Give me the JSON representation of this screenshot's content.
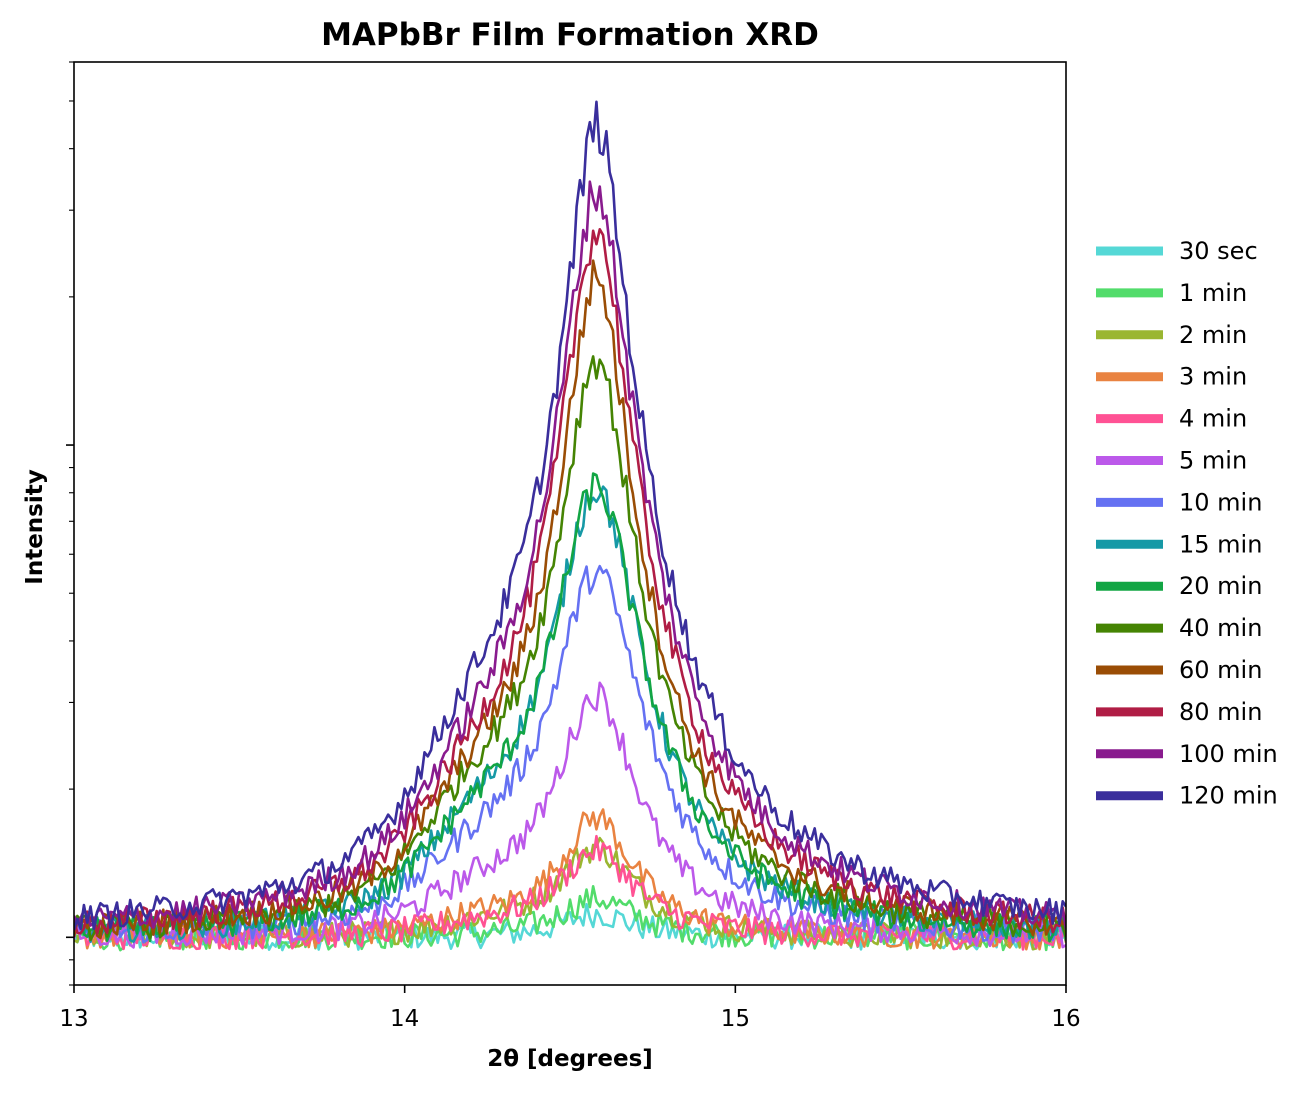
{
  "chart_data": {
    "type": "line",
    "title": "MAPbBr Film Formation XRD",
    "xlabel": "2θ [degrees]",
    "ylabel": "Intensity",
    "xlim": [
      13,
      16
    ],
    "xticks": [
      13,
      14,
      15,
      16
    ],
    "xtick_labels": [
      "13",
      "14",
      "15",
      "16"
    ],
    "y_scale": "log",
    "y_tick_labels_shown": false,
    "grid": false,
    "legend_position": "right, outside plot area",
    "peak_center": 14.58,
    "series": [
      {
        "name": "30 sec",
        "color": "#55d8d6",
        "baseline": 1.0,
        "peak": 1.12,
        "width": 0.12,
        "shoulder": 0.0
      },
      {
        "name": "1 min",
        "color": "#52dc6b",
        "baseline": 1.0,
        "peak": 1.2,
        "width": 0.13,
        "shoulder": 0.0
      },
      {
        "name": "2 min",
        "color": "#9ab631",
        "baseline": 1.0,
        "peak": 1.52,
        "width": 0.13,
        "shoulder": 0.05
      },
      {
        "name": "3 min",
        "color": "#e98341",
        "baseline": 1.0,
        "peak": 1.75,
        "width": 0.12,
        "shoulder": 0.06
      },
      {
        "name": "4 min",
        "color": "#ff5294",
        "baseline": 1.0,
        "peak": 1.5,
        "width": 0.13,
        "shoulder": 0.05
      },
      {
        "name": "5 min",
        "color": "#bc59ea",
        "baseline": 1.0,
        "peak": 3.1,
        "width": 0.12,
        "shoulder": 0.12
      },
      {
        "name": "10 min",
        "color": "#6571f2",
        "baseline": 1.0,
        "peak": 5.5,
        "width": 0.12,
        "shoulder": 0.16
      },
      {
        "name": "15 min",
        "color": "#1699a6",
        "baseline": 1.0,
        "peak": 8.2,
        "width": 0.11,
        "shoulder": 0.18
      },
      {
        "name": "20 min",
        "color": "#12a544",
        "baseline": 1.0,
        "peak": 8.2,
        "width": 0.11,
        "shoulder": 0.18
      },
      {
        "name": "40 min",
        "color": "#458403",
        "baseline": 1.0,
        "peak": 15.0,
        "width": 0.09,
        "shoulder": 0.2
      },
      {
        "name": "60 min",
        "color": "#9a4d05",
        "baseline": 1.0,
        "peak": 22.0,
        "width": 0.08,
        "shoulder": 0.18
      },
      {
        "name": "80 min",
        "color": "#b01d45",
        "baseline": 1.0,
        "peak": 27.5,
        "width": 0.08,
        "shoulder": 0.17
      },
      {
        "name": "100 min",
        "color": "#891b8e",
        "baseline": 1.0,
        "peak": 33.0,
        "width": 0.08,
        "shoulder": 0.17
      },
      {
        "name": "120 min",
        "color": "#3a2e9c",
        "baseline": 1.0,
        "peak": 45.0,
        "width": 0.075,
        "shoulder": 0.22
      }
    ]
  }
}
